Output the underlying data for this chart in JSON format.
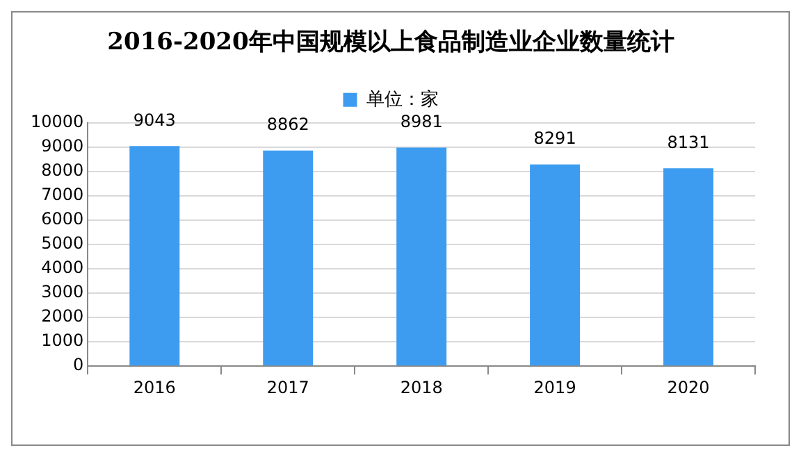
{
  "chart_data": {
    "type": "bar",
    "title": "2016-2020年中国规模以上食品制造业企业数量统计",
    "categories": [
      "2016",
      "2017",
      "2018",
      "2019",
      "2020"
    ],
    "series": [
      {
        "name": "单位：家",
        "color": "#3d9cf0",
        "values": [
          9043,
          8862,
          8981,
          8291,
          8131
        ]
      }
    ],
    "ylim": [
      0,
      10000
    ],
    "yticks": [
      0,
      1000,
      2000,
      3000,
      4000,
      5000,
      6000,
      7000,
      8000,
      9000,
      10000
    ],
    "grid": "y",
    "legend": "top",
    "data_labels": true
  }
}
